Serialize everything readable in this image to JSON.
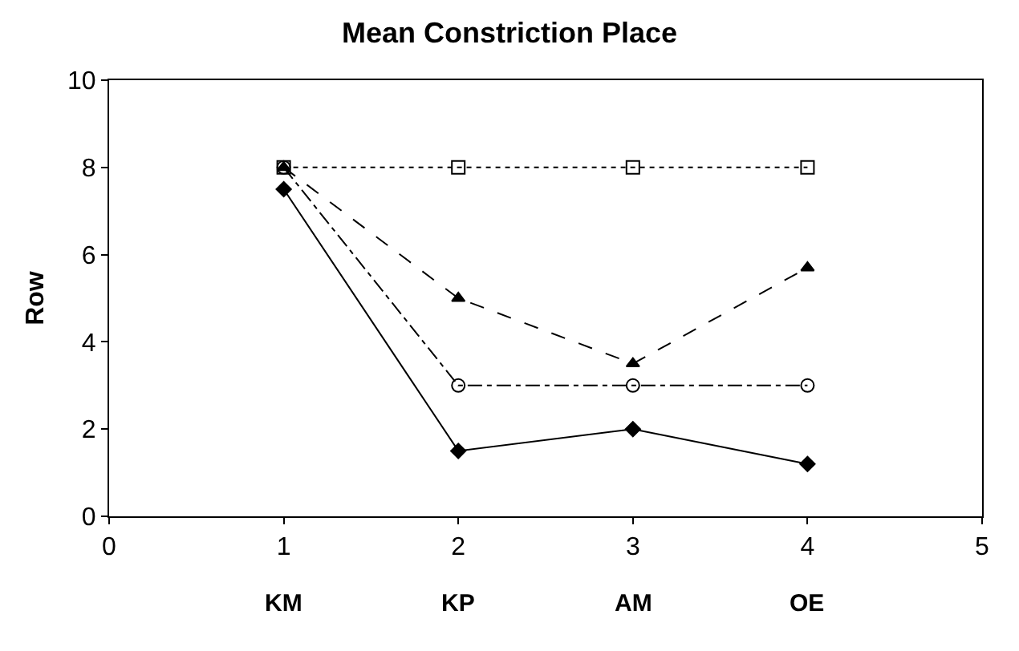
{
  "chart_data": {
    "type": "line",
    "title": "Mean Constriction Place",
    "ylabel": "Row",
    "x": [
      1,
      2,
      3,
      4
    ],
    "series": [
      {
        "color": "#000000",
        "values": [
          8,
          8,
          8,
          8
        ],
        "marker": "square-open",
        "line_style": "dotted"
      },
      {
        "color": "#000000",
        "values": [
          8,
          5,
          3.5,
          5.7
        ],
        "marker": "triangle-up",
        "line_style": "dashed"
      },
      {
        "color": "#000000",
        "values": [
          8,
          3,
          3,
          3
        ],
        "marker": "circle-open",
        "line_style": "dashdot"
      },
      {
        "color": "#000000",
        "values": [
          7.5,
          1.5,
          2,
          1.2
        ],
        "marker": "diamond",
        "line_style": "solid"
      }
    ],
    "xlim": [
      0,
      5
    ],
    "xticks": [
      0,
      1,
      2,
      3,
      4,
      5
    ],
    "ylim": [
      0,
      10
    ],
    "yticks": [
      0,
      2,
      4,
      6,
      8,
      10
    ],
    "annotations": [
      "KM",
      "KP",
      "AM",
      "OE"
    ],
    "legend": false
  }
}
